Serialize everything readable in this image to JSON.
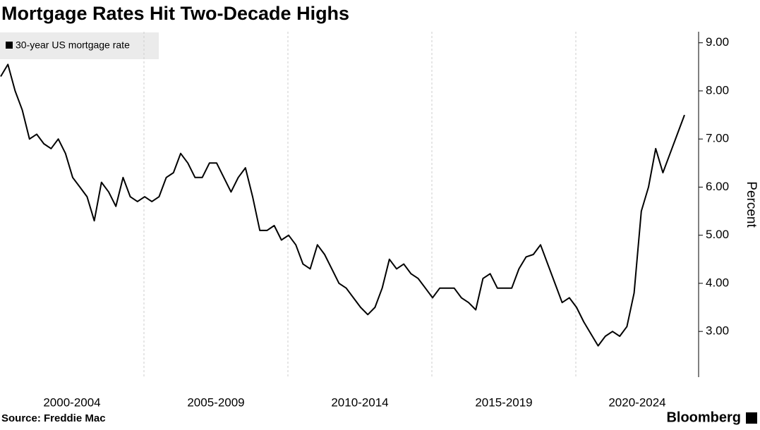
{
  "chart_data": {
    "type": "line",
    "title": "Mortgage Rates Hit Two-Decade Highs",
    "y_label": "Percent",
    "source": "Source: Freddie Mac",
    "brand": "Bloomberg",
    "x_labels": [
      "2000-2004",
      "2005-2009",
      "2010-2014",
      "2015-2019",
      "2020-2024"
    ],
    "ylim": [
      2.05,
      9.23
    ],
    "yticks": [
      {
        "value": 3,
        "label": "3.00"
      },
      {
        "value": 4,
        "label": "4.00"
      },
      {
        "value": 5,
        "label": "5.00"
      },
      {
        "value": 6,
        "label": "6.00"
      },
      {
        "value": 7,
        "label": "7.00"
      },
      {
        "value": 8,
        "label": "8.00"
      },
      {
        "value": 9,
        "label": "9.00"
      }
    ],
    "grid": "vertical-dashed",
    "series": [
      {
        "name": "30-year US mortgage rate",
        "color": "#000000",
        "values": [
          8.3,
          8.55,
          8.0,
          7.6,
          7.0,
          7.1,
          6.9,
          6.8,
          7.0,
          6.7,
          6.2,
          6.0,
          5.8,
          5.3,
          6.1,
          5.9,
          5.6,
          6.2,
          5.8,
          5.7,
          5.8,
          5.7,
          5.8,
          6.2,
          6.3,
          6.7,
          6.5,
          6.2,
          6.2,
          6.5,
          6.5,
          6.2,
          5.9,
          6.2,
          6.4,
          5.8,
          5.1,
          5.1,
          5.2,
          4.9,
          5.0,
          4.8,
          4.4,
          4.3,
          4.8,
          4.6,
          4.3,
          4.0,
          3.9,
          3.7,
          3.5,
          3.35,
          3.5,
          3.9,
          4.5,
          4.3,
          4.4,
          4.2,
          4.1,
          3.9,
          3.7,
          3.9,
          3.9,
          3.9,
          3.7,
          3.6,
          3.45,
          4.1,
          4.2,
          3.9,
          3.9,
          3.9,
          4.3,
          4.55,
          4.6,
          4.8,
          4.4,
          4.0,
          3.6,
          3.7,
          3.5,
          3.2,
          2.95,
          2.7,
          2.9,
          3.0,
          2.9,
          3.1,
          3.8,
          5.5,
          6.0,
          6.8,
          6.3,
          6.7,
          7.1,
          7.5
        ]
      }
    ]
  }
}
